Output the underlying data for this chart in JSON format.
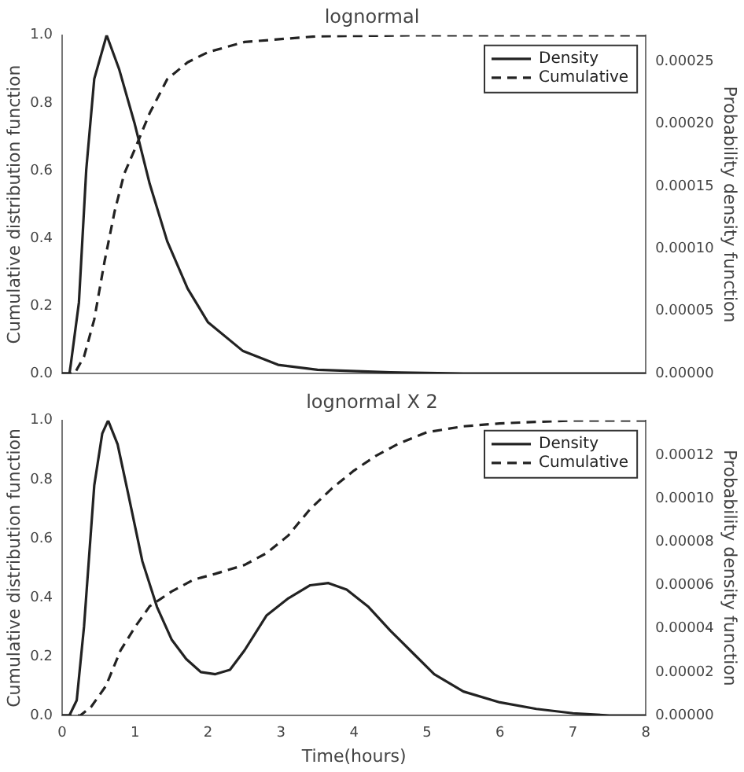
{
  "chart_data": [
    {
      "type": "line",
      "title": "lognormal",
      "ylabel": "Cumulative distribution function",
      "y2label": "Probability density function",
      "xlim": [
        0,
        8
      ],
      "xticks": [
        0,
        1,
        2,
        3,
        4,
        5,
        6,
        7,
        8
      ],
      "ylim": [
        0,
        1
      ],
      "yticks": [
        {
          "value": 0,
          "label": "0.0"
        },
        {
          "value": 0.2,
          "label": "0.2"
        },
        {
          "value": 0.4,
          "label": "0.4"
        },
        {
          "value": 0.6,
          "label": "0.6"
        },
        {
          "value": 0.8,
          "label": "0.8"
        },
        {
          "value": 1,
          "label": "1.0"
        }
      ],
      "y2lim": [
        0,
        0.000271
      ],
      "y2ticks": [
        {
          "value": 0,
          "label": "0.00000"
        },
        {
          "value": 5e-05,
          "label": "0.00005"
        },
        {
          "value": 0.0001,
          "label": "0.00010"
        },
        {
          "value": 0.00015,
          "label": "0.00015"
        },
        {
          "value": 0.0002,
          "label": "0.00020"
        },
        {
          "value": 0.00025,
          "label": "0.00025"
        }
      ],
      "tick_labels": "y",
      "legend": "top right",
      "grid": false,
      "marker": "none",
      "series": [
        {
          "name": "Density",
          "color": "#222222",
          "axis": "y2",
          "line_style": "solid",
          "x": [
            0,
            0.1,
            0.12,
            0.23,
            0.33,
            0.44,
            0.61,
            0.78,
            0.99,
            1.2,
            1.44,
            1.72,
            2.0,
            2.48,
            2.96,
            3.5,
            4.5,
            5.5,
            8
          ],
          "values": [
            0,
            0,
            8e-06,
            5.7e-05,
            0.000163,
            0.000236,
            0.000271,
            0.000244,
            0.000201,
            0.000152,
            0.000106,
            6.8e-05,
            4.1e-05,
            1.8e-05,
            7e-06,
            3e-06,
            1e-06,
            0,
            0
          ]
        },
        {
          "name": "Cumulative",
          "color": "#222222",
          "axis": "y",
          "line_style": "dashed",
          "x": [
            0,
            0.17,
            0.3,
            0.44,
            0.58,
            0.72,
            0.85,
            0.99,
            1.2,
            1.44,
            1.72,
            2.0,
            2.5,
            3.5,
            5,
            8
          ],
          "values": [
            0,
            0,
            0.05,
            0.16,
            0.33,
            0.48,
            0.59,
            0.66,
            0.77,
            0.87,
            0.92,
            0.95,
            0.98,
            0.997,
            1,
            1
          ]
        }
      ]
    },
    {
      "type": "line",
      "title": "lognormal X 2",
      "xlabel": "Time(hours)",
      "ylabel": "Cumulative distribution function",
      "y2label": "Probability density function",
      "xlim": [
        0,
        8
      ],
      "xticks": [
        0,
        1,
        2,
        3,
        4,
        5,
        6,
        7,
        8
      ],
      "ylim": [
        0,
        1
      ],
      "yticks": [
        {
          "value": 0,
          "label": "0.0"
        },
        {
          "value": 0.2,
          "label": "0.2"
        },
        {
          "value": 0.4,
          "label": "0.4"
        },
        {
          "value": 0.6,
          "label": "0.6"
        },
        {
          "value": 0.8,
          "label": "0.8"
        },
        {
          "value": 1,
          "label": "1.0"
        }
      ],
      "y2lim": [
        0,
        0.000136
      ],
      "y2ticks": [
        {
          "value": 0,
          "label": "0.00000"
        },
        {
          "value": 2e-05,
          "label": "0.00002"
        },
        {
          "value": 4e-05,
          "label": "0.00004"
        },
        {
          "value": 6e-05,
          "label": "0.00006"
        },
        {
          "value": 8e-05,
          "label": "0.00008"
        },
        {
          "value": 0.0001,
          "label": "0.00010"
        },
        {
          "value": 0.00012,
          "label": "0.00012"
        }
      ],
      "legend": "top right",
      "grid": false,
      "marker": "none",
      "series": [
        {
          "name": "Density",
          "color": "#222222",
          "axis": "y2",
          "line_style": "solid",
          "x": [
            0,
            0.1,
            0.2,
            0.3,
            0.44,
            0.55,
            0.63,
            0.76,
            0.9,
            1.1,
            1.3,
            1.5,
            1.7,
            1.9,
            2.1,
            2.3,
            2.5,
            2.8,
            3.1,
            3.4,
            3.65,
            3.9,
            4.2,
            4.5,
            4.8,
            5.1,
            5.5,
            6.0,
            6.5,
            7.0,
            7.5,
            8.0
          ],
          "values": [
            0,
            0,
            7e-06,
            4.1e-05,
            0.000106,
            0.00013,
            0.000136,
            0.000125,
            0.000103,
            7.1e-05,
            5e-05,
            3.5e-05,
            2.6e-05,
            2e-05,
            1.9e-05,
            2.1e-05,
            3e-05,
            4.6e-05,
            5.4e-05,
            6e-05,
            6.1e-05,
            5.8e-05,
            5e-05,
            3.9e-05,
            2.9e-05,
            1.9e-05,
            1.1e-05,
            6e-06,
            3e-06,
            1e-06,
            0,
            0
          ]
        },
        {
          "name": "Cumulative",
          "color": "#222222",
          "axis": "y",
          "line_style": "dashed",
          "x": [
            0,
            0.25,
            0.4,
            0.6,
            0.8,
            1.0,
            1.2,
            1.5,
            1.8,
            2.1,
            2.5,
            2.8,
            3.1,
            3.4,
            3.7,
            4.0,
            4.3,
            4.6,
            5.0,
            5.5,
            6.0,
            7.0,
            8.0
          ],
          "values": [
            0,
            0,
            0.03,
            0.1,
            0.22,
            0.3,
            0.37,
            0.42,
            0.46,
            0.48,
            0.51,
            0.55,
            0.61,
            0.7,
            0.77,
            0.83,
            0.88,
            0.92,
            0.96,
            0.98,
            0.99,
            1,
            1
          ]
        }
      ]
    }
  ]
}
